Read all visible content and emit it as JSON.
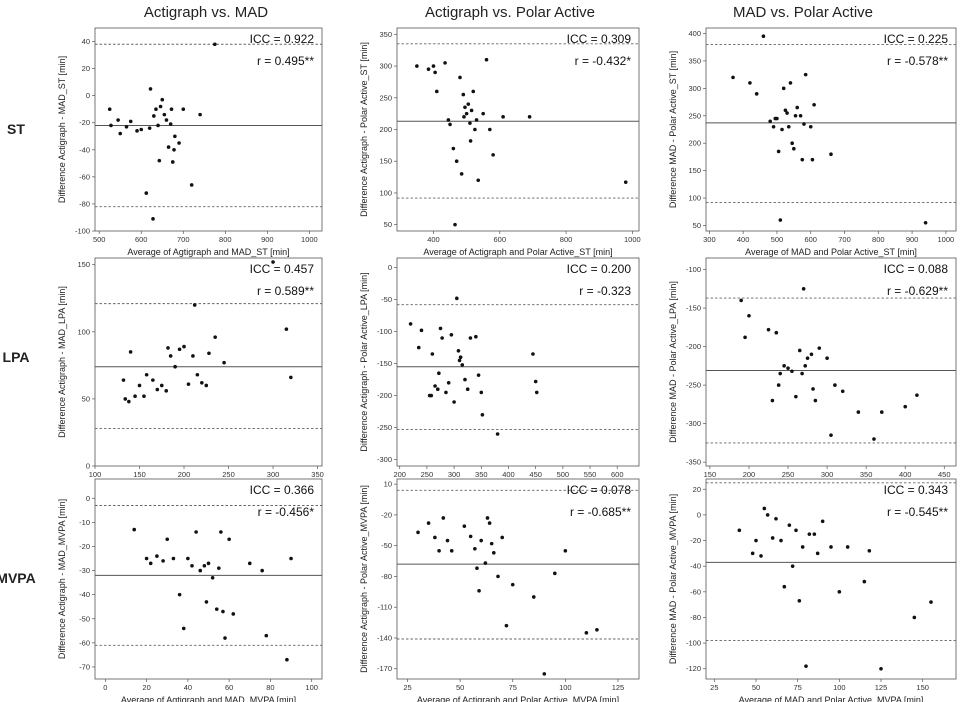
{
  "column_titles": [
    "Actigraph vs. MAD",
    "Actigraph vs. Polar Active",
    "MAD vs. Polar Active"
  ],
  "row_labels": [
    "ST",
    "LPA",
    "MVPA"
  ],
  "chart_data": [
    {
      "type": "scatter",
      "row": 0,
      "col": 0,
      "xlabel": "Average of Agtigraph and MAD_ST [min]",
      "ylabel": "Difference Actigraph - MAD_ST [min]",
      "xlim": [
        490,
        1030
      ],
      "ylim": [
        -100,
        50
      ],
      "xticks": [
        500,
        600,
        700,
        800,
        900,
        1000
      ],
      "yticks": [
        -100,
        -80,
        -60,
        -40,
        -20,
        0,
        20,
        40
      ],
      "mean": -22,
      "loa": [
        -82,
        38
      ],
      "icc": "ICC = 0.922",
      "r": "r = 0.495**",
      "points": [
        [
          525,
          -10
        ],
        [
          528,
          -22
        ],
        [
          545,
          -18
        ],
        [
          550,
          -28
        ],
        [
          565,
          -23
        ],
        [
          575,
          -19
        ],
        [
          590,
          -26
        ],
        [
          600,
          -25
        ],
        [
          612,
          -72
        ],
        [
          620,
          -24
        ],
        [
          628,
          -91
        ],
        [
          622,
          5
        ],
        [
          630,
          -15
        ],
        [
          635,
          -10
        ],
        [
          640,
          -22
        ],
        [
          643,
          -48
        ],
        [
          646,
          -8
        ],
        [
          650,
          -3
        ],
        [
          655,
          -14
        ],
        [
          660,
          -18
        ],
        [
          665,
          -38
        ],
        [
          670,
          -21
        ],
        [
          672,
          -10
        ],
        [
          675,
          -49
        ],
        [
          678,
          -40
        ],
        [
          680,
          -30
        ],
        [
          690,
          -35
        ],
        [
          700,
          -10
        ],
        [
          720,
          -66
        ],
        [
          740,
          -14
        ],
        [
          775,
          38
        ]
      ]
    },
    {
      "type": "scatter",
      "row": 0,
      "col": 1,
      "xlabel": "Average of Actigraph and Polar Active_ST [min]",
      "ylabel": "Difference Actigraph - Polar Active_ST [min]",
      "xlim": [
        290,
        1020
      ],
      "ylim": [
        40,
        360
      ],
      "xticks": [
        400,
        600,
        800,
        1000
      ],
      "yticks": [
        50,
        100,
        150,
        200,
        250,
        300,
        350
      ],
      "mean": 213,
      "loa": [
        92,
        335
      ],
      "icc": "ICC = 0.309",
      "r": "r = -0.432*",
      "points": [
        [
          350,
          300
        ],
        [
          385,
          295
        ],
        [
          400,
          300
        ],
        [
          405,
          290
        ],
        [
          410,
          260
        ],
        [
          435,
          305
        ],
        [
          445,
          215
        ],
        [
          450,
          208
        ],
        [
          460,
          170
        ],
        [
          465,
          50
        ],
        [
          470,
          150
        ],
        [
          480,
          282
        ],
        [
          485,
          130
        ],
        [
          490,
          255
        ],
        [
          492,
          220
        ],
        [
          495,
          235
        ],
        [
          500,
          225
        ],
        [
          505,
          240
        ],
        [
          510,
          210
        ],
        [
          512,
          182
        ],
        [
          515,
          230
        ],
        [
          520,
          260
        ],
        [
          525,
          200
        ],
        [
          530,
          215
        ],
        [
          535,
          120
        ],
        [
          550,
          225
        ],
        [
          560,
          310
        ],
        [
          570,
          200
        ],
        [
          580,
          160
        ],
        [
          610,
          220
        ],
        [
          690,
          220
        ],
        [
          980,
          117
        ]
      ]
    },
    {
      "type": "scatter",
      "row": 0,
      "col": 2,
      "xlabel": "Average of MAD and Polar Active_ST [min]",
      "ylabel": "Difference MAD - Polar Active_ST [min]",
      "xlim": [
        290,
        1030
      ],
      "ylim": [
        40,
        410
      ],
      "xticks": [
        300,
        400,
        500,
        600,
        700,
        800,
        900,
        1000
      ],
      "yticks": [
        50,
        100,
        150,
        200,
        250,
        300,
        350,
        400
      ],
      "mean": 237,
      "loa": [
        92,
        380
      ],
      "icc": "ICC = 0.225",
      "r": "r = -0.578**",
      "points": [
        [
          370,
          320
        ],
        [
          420,
          310
        ],
        [
          440,
          290
        ],
        [
          460,
          395
        ],
        [
          480,
          240
        ],
        [
          490,
          230
        ],
        [
          495,
          245
        ],
        [
          500,
          245
        ],
        [
          505,
          185
        ],
        [
          510,
          60
        ],
        [
          515,
          225
        ],
        [
          520,
          300
        ],
        [
          525,
          260
        ],
        [
          530,
          255
        ],
        [
          535,
          230
        ],
        [
          540,
          310
        ],
        [
          545,
          200
        ],
        [
          550,
          190
        ],
        [
          555,
          250
        ],
        [
          560,
          265
        ],
        [
          570,
          250
        ],
        [
          575,
          170
        ],
        [
          580,
          235
        ],
        [
          585,
          325
        ],
        [
          600,
          230
        ],
        [
          605,
          170
        ],
        [
          610,
          270
        ],
        [
          660,
          180
        ],
        [
          940,
          55
        ]
      ]
    },
    {
      "type": "scatter",
      "row": 1,
      "col": 0,
      "xlabel": "Average of Agtigraph and MAD_LPA [min]",
      "ylabel": "Difference Actigraph - MAD_LPA [min]",
      "xlim": [
        100,
        355
      ],
      "ylim": [
        0,
        155
      ],
      "xticks": [
        100,
        150,
        200,
        250,
        300,
        350
      ],
      "yticks": [
        0,
        50,
        100,
        150
      ],
      "mean": 74,
      "loa": [
        28,
        121
      ],
      "icc": "ICC = 0.457",
      "r": "r = 0.589**",
      "points": [
        [
          132,
          64
        ],
        [
          134,
          50
        ],
        [
          138,
          48
        ],
        [
          140,
          85
        ],
        [
          145,
          52
        ],
        [
          150,
          60
        ],
        [
          155,
          52
        ],
        [
          158,
          68
        ],
        [
          165,
          64
        ],
        [
          170,
          57
        ],
        [
          175,
          60
        ],
        [
          180,
          56
        ],
        [
          182,
          88
        ],
        [
          185,
          82
        ],
        [
          190,
          74
        ],
        [
          195,
          87
        ],
        [
          200,
          89
        ],
        [
          205,
          61
        ],
        [
          210,
          82
        ],
        [
          212,
          120
        ],
        [
          215,
          68
        ],
        [
          220,
          62
        ],
        [
          225,
          60
        ],
        [
          228,
          84
        ],
        [
          235,
          96
        ],
        [
          245,
          77
        ],
        [
          300,
          152
        ],
        [
          315,
          102
        ],
        [
          320,
          66
        ]
      ]
    },
    {
      "type": "scatter",
      "row": 1,
      "col": 1,
      "xlabel": "Average of Actigraph and Polar Active_LPA [min]",
      "ylabel": "Difference Actigraph - Polar Active_LPA [min]",
      "xlim": [
        195,
        640
      ],
      "ylim": [
        -310,
        15
      ],
      "xticks": [
        200,
        250,
        300,
        350,
        400,
        450,
        500,
        550,
        600
      ],
      "yticks": [
        -300,
        -250,
        -200,
        -150,
        -100,
        -50,
        0
      ],
      "mean": -155,
      "loa": [
        -253,
        -58
      ],
      "icc": "ICC = 0.200",
      "r": "r = -0.323",
      "points": [
        [
          220,
          -88
        ],
        [
          235,
          -125
        ],
        [
          240,
          -98
        ],
        [
          255,
          -200
        ],
        [
          258,
          -200
        ],
        [
          260,
          -135
        ],
        [
          265,
          -185
        ],
        [
          270,
          -190
        ],
        [
          272,
          -165
        ],
        [
          275,
          -95
        ],
        [
          278,
          -110
        ],
        [
          285,
          -195
        ],
        [
          290,
          -180
        ],
        [
          295,
          -105
        ],
        [
          300,
          -210
        ],
        [
          305,
          -48
        ],
        [
          308,
          -130
        ],
        [
          310,
          -145
        ],
        [
          312,
          -140
        ],
        [
          315,
          -152
        ],
        [
          320,
          -175
        ],
        [
          325,
          -190
        ],
        [
          330,
          -110
        ],
        [
          340,
          -108
        ],
        [
          345,
          -168
        ],
        [
          350,
          -195
        ],
        [
          352,
          -230
        ],
        [
          380,
          -260
        ],
        [
          445,
          -135
        ],
        [
          450,
          -178
        ],
        [
          452,
          -195
        ]
      ]
    },
    {
      "type": "scatter",
      "row": 1,
      "col": 2,
      "xlabel": "Average of MAD and Polar Active_LPA [min]",
      "ylabel": "Difference MAD - Polar Active_LPA [min]",
      "xlim": [
        145,
        465
      ],
      "ylim": [
        -355,
        -85
      ],
      "xticks": [
        150,
        200,
        250,
        300,
        350,
        400,
        450
      ],
      "yticks": [
        -350,
        -300,
        -250,
        -200,
        -150,
        -100
      ],
      "mean": -231,
      "loa": [
        -325,
        -137
      ],
      "icc": "ICC = 0.088",
      "r": "r = -0.629**",
      "points": [
        [
          190,
          -140
        ],
        [
          195,
          -188
        ],
        [
          200,
          -160
        ],
        [
          225,
          -178
        ],
        [
          230,
          -270
        ],
        [
          235,
          -182
        ],
        [
          238,
          -250
        ],
        [
          240,
          -235
        ],
        [
          245,
          -225
        ],
        [
          250,
          -228
        ],
        [
          255,
          -232
        ],
        [
          260,
          -265
        ],
        [
          265,
          -205
        ],
        [
          268,
          -235
        ],
        [
          270,
          -125
        ],
        [
          272,
          -225
        ],
        [
          275,
          -215
        ],
        [
          280,
          -210
        ],
        [
          282,
          -255
        ],
        [
          285,
          -270
        ],
        [
          290,
          -202
        ],
        [
          300,
          -215
        ],
        [
          305,
          -315
        ],
        [
          310,
          -250
        ],
        [
          320,
          -258
        ],
        [
          340,
          -285
        ],
        [
          360,
          -320
        ],
        [
          370,
          -285
        ],
        [
          400,
          -278
        ],
        [
          415,
          -263
        ]
      ]
    },
    {
      "type": "scatter",
      "row": 2,
      "col": 0,
      "xlabel": "Average of Agtigraph and MAD_MVPA [min]",
      "ylabel": "Difference Actigraph - MAD_MVPA [min]",
      "xlim": [
        -5,
        105
      ],
      "ylim": [
        -75,
        8
      ],
      "xticks": [
        0,
        20,
        40,
        60,
        80,
        100
      ],
      "yticks": [
        -70,
        -60,
        -50,
        -40,
        -30,
        -20,
        -10,
        0
      ],
      "mean": -32,
      "loa": [
        -61,
        -3
      ],
      "icc": "ICC = 0.366",
      "r": "r = -0.456*",
      "points": [
        [
          14,
          -13
        ],
        [
          20,
          -25
        ],
        [
          22,
          -27
        ],
        [
          25,
          -24
        ],
        [
          28,
          -26
        ],
        [
          30,
          -17
        ],
        [
          33,
          -25
        ],
        [
          36,
          -40
        ],
        [
          38,
          -54
        ],
        [
          40,
          -25
        ],
        [
          42,
          -28
        ],
        [
          44,
          -14
        ],
        [
          46,
          -30
        ],
        [
          48,
          -28
        ],
        [
          49,
          -43
        ],
        [
          50,
          -27
        ],
        [
          52,
          -33
        ],
        [
          54,
          -46
        ],
        [
          55,
          -29
        ],
        [
          56,
          -14
        ],
        [
          57,
          -47
        ],
        [
          58,
          -58
        ],
        [
          60,
          -17
        ],
        [
          62,
          -48
        ],
        [
          70,
          -27
        ],
        [
          76,
          -30
        ],
        [
          78,
          -57
        ],
        [
          88,
          -67
        ],
        [
          90,
          -25
        ]
      ]
    },
    {
      "type": "scatter",
      "row": 2,
      "col": 1,
      "xlabel": "Average of Actigraph and Polar Active_MVPA [min]",
      "ylabel": "Difference Actigraph - Polar Active_MVPA [min]",
      "xlim": [
        20,
        135
      ],
      "ylim": [
        -180,
        15
      ],
      "xticks": [
        25,
        50,
        75,
        100,
        125
      ],
      "yticks": [
        -170,
        -140,
        -110,
        -80,
        -50,
        -20,
        10
      ],
      "mean": -68,
      "loa": [
        -141,
        4
      ],
      "icc": "ICC = 0.078",
      "r": "r = -0.685**",
      "points": [
        [
          30,
          -37
        ],
        [
          35,
          -28
        ],
        [
          38,
          -42
        ],
        [
          40,
          -55
        ],
        [
          42,
          -23
        ],
        [
          44,
          -45
        ],
        [
          46,
          -55
        ],
        [
          52,
          -31
        ],
        [
          55,
          -41
        ],
        [
          57,
          -53
        ],
        [
          58,
          -72
        ],
        [
          59,
          -94
        ],
        [
          60,
          -45
        ],
        [
          62,
          -67
        ],
        [
          63,
          -23
        ],
        [
          64,
          -28
        ],
        [
          65,
          -48
        ],
        [
          66,
          -57
        ],
        [
          68,
          -80
        ],
        [
          70,
          -42
        ],
        [
          72,
          -128
        ],
        [
          75,
          -88
        ],
        [
          85,
          -100
        ],
        [
          90,
          -175
        ],
        [
          95,
          -77
        ],
        [
          100,
          -55
        ],
        [
          110,
          -135
        ],
        [
          115,
          -132
        ]
      ]
    },
    {
      "type": "scatter",
      "row": 2,
      "col": 2,
      "xlabel": "Average of MAD and Polar Active_MVPA [min]",
      "ylabel": "Difference MAD - Polar Active_MVPA [min]",
      "xlim": [
        20,
        170
      ],
      "ylim": [
        -128,
        28
      ],
      "xticks": [
        25,
        50,
        75,
        100,
        125,
        150
      ],
      "yticks": [
        -120,
        -100,
        -80,
        -60,
        -40,
        -20,
        0,
        20
      ],
      "mean": -37,
      "loa": [
        -98,
        25
      ],
      "icc": "ICC = 0.343",
      "r": "r = -0.545**",
      "points": [
        [
          40,
          -12
        ],
        [
          48,
          -30
        ],
        [
          50,
          -20
        ],
        [
          53,
          -32
        ],
        [
          55,
          5
        ],
        [
          57,
          0
        ],
        [
          60,
          -18
        ],
        [
          62,
          -3
        ],
        [
          65,
          -20
        ],
        [
          67,
          -56
        ],
        [
          70,
          -8
        ],
        [
          72,
          -40
        ],
        [
          74,
          -12
        ],
        [
          76,
          -67
        ],
        [
          78,
          -25
        ],
        [
          80,
          -118
        ],
        [
          82,
          -15
        ],
        [
          85,
          -15
        ],
        [
          87,
          -30
        ],
        [
          90,
          -5
        ],
        [
          95,
          -25
        ],
        [
          100,
          -60
        ],
        [
          105,
          -25
        ],
        [
          115,
          -52
        ],
        [
          118,
          -28
        ],
        [
          125,
          -120
        ],
        [
          145,
          -80
        ],
        [
          155,
          -68
        ]
      ]
    }
  ]
}
